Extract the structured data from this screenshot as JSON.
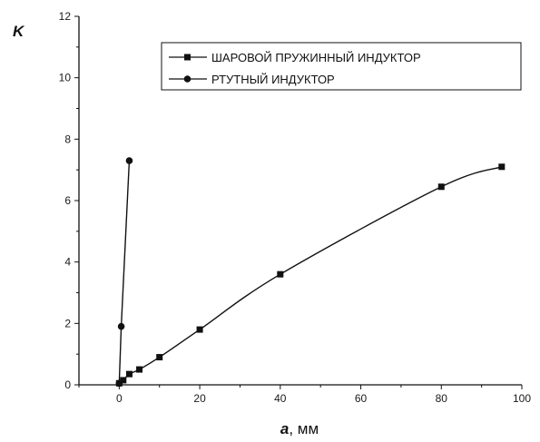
{
  "chart_data": {
    "type": "line",
    "xlabel_var": "a",
    "xlabel_unit": ", мм",
    "ylabel": "K",
    "xlim": [
      -10,
      100
    ],
    "ylim": [
      0,
      12
    ],
    "xticks": [
      "0",
      "20",
      "40",
      "60",
      "80",
      "100"
    ],
    "yticks": [
      "0",
      "2",
      "4",
      "6",
      "8",
      "10",
      "12"
    ],
    "legend_position": "top-right",
    "grid": false,
    "series": [
      {
        "name": "ШАРОВОЙ ПРУЖИННЫЙ ИНДУКТОР",
        "marker": "square",
        "x": [
          0,
          1,
          2.5,
          5,
          10,
          20,
          40,
          80,
          95
        ],
        "y": [
          0.05,
          0.15,
          0.35,
          0.5,
          0.9,
          1.8,
          3.6,
          6.45,
          7.1
        ]
      },
      {
        "name": "РТУТНЫЙ ИНДУКТОР",
        "marker": "circle",
        "x": [
          0,
          0.5,
          2.5
        ],
        "y": [
          0.05,
          1.9,
          7.3
        ]
      }
    ]
  }
}
